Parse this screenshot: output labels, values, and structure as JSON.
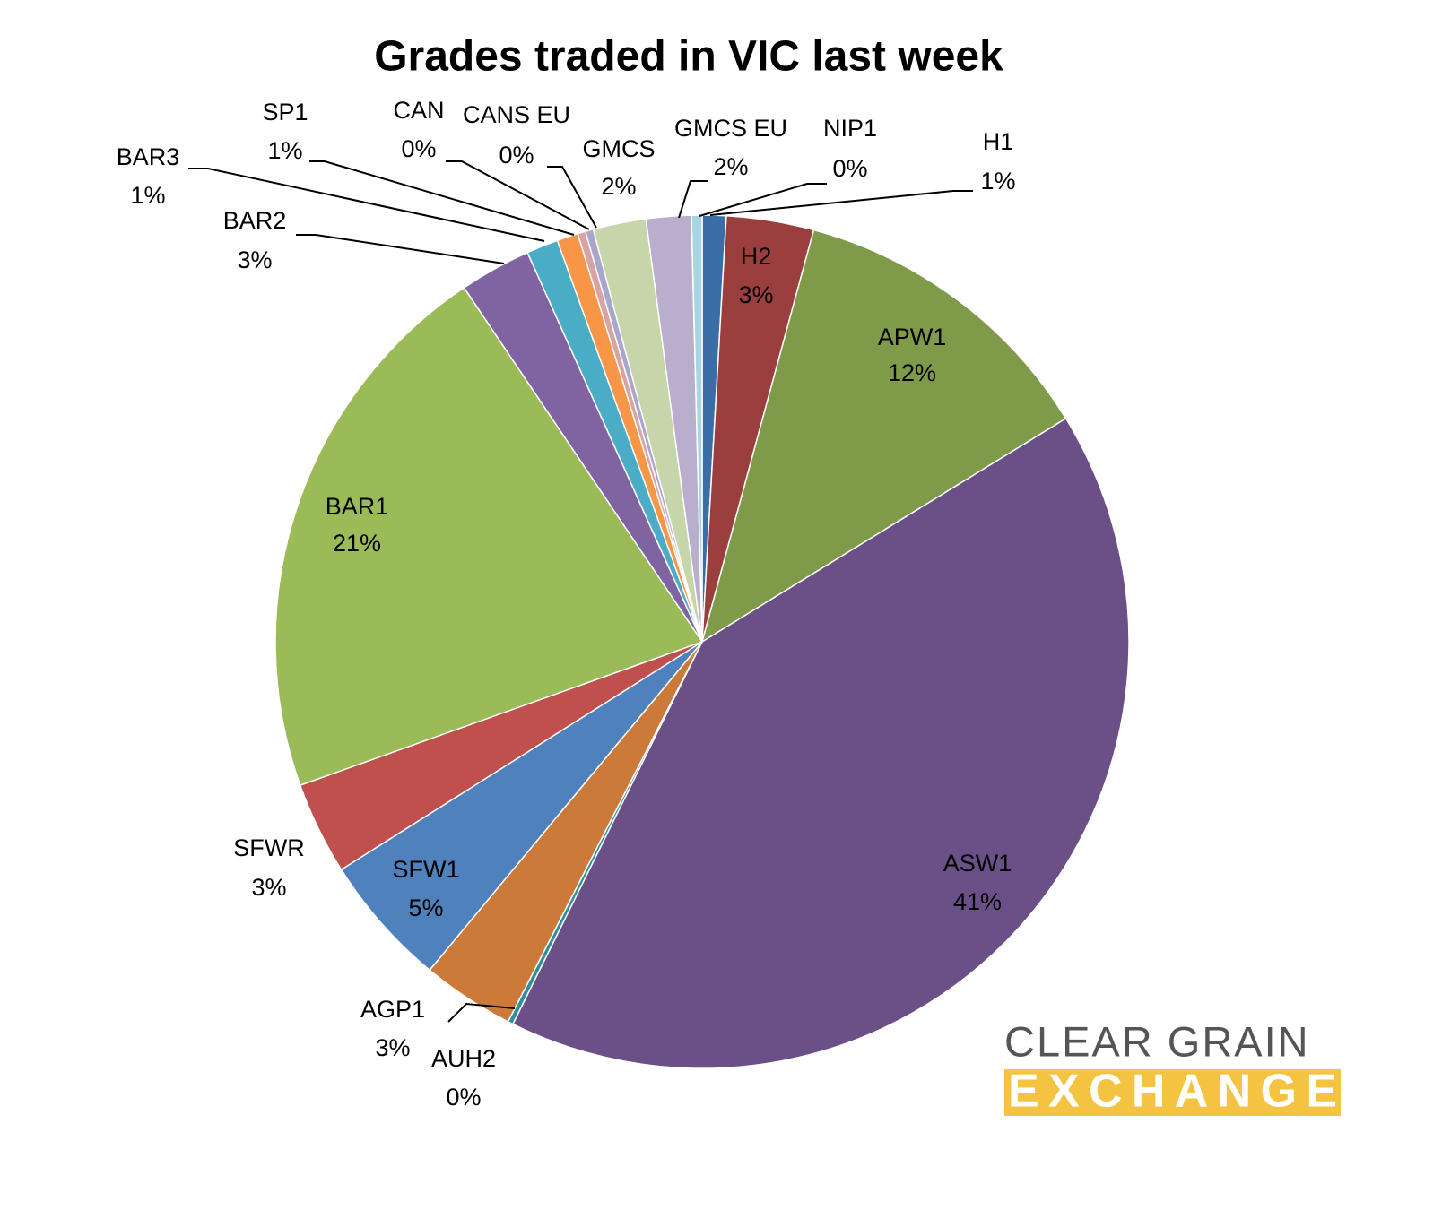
{
  "chart_data": {
    "type": "pie",
    "title": "Grades traded in VIC last week",
    "categories": [
      "H1",
      "H2",
      "APW1",
      "ASW1",
      "AUH2",
      "AGP1",
      "SFW1",
      "SFWR",
      "BAR1",
      "BAR2",
      "BAR3",
      "SP1",
      "CAN",
      "CANS EU",
      "GMCS",
      "GMCS EU",
      "NIP1"
    ],
    "values": [
      0.9,
      3.3,
      12,
      41,
      0.2,
      3.5,
      5,
      3.5,
      21,
      2.7,
      1.2,
      0.8,
      0.3,
      0.3,
      2,
      1.7,
      0.4
    ],
    "value_labels": [
      "1%",
      "3%",
      "12%",
      "41%",
      "0%",
      "3%",
      "5%",
      "3%",
      "21%",
      "3%",
      "1%",
      "1%",
      "0%",
      "0%",
      "2%",
      "2%",
      "0%"
    ],
    "colors": [
      "#3b6ea6",
      "#9a3f3e",
      "#7f9b4a",
      "#6a5086",
      "#2e8fa0",
      "#cc7a3a",
      "#4f81bd",
      "#c0504d",
      "#9bbb59",
      "#8064a2",
      "#4bacc6",
      "#f79646",
      "#d9a3a3",
      "#a9a6cc",
      "#c6d6aa",
      "#b9afcc",
      "#a6d5e6"
    ]
  },
  "logo": {
    "line1": "CLEAR GRAIN",
    "line2": "EXCHANGE"
  }
}
